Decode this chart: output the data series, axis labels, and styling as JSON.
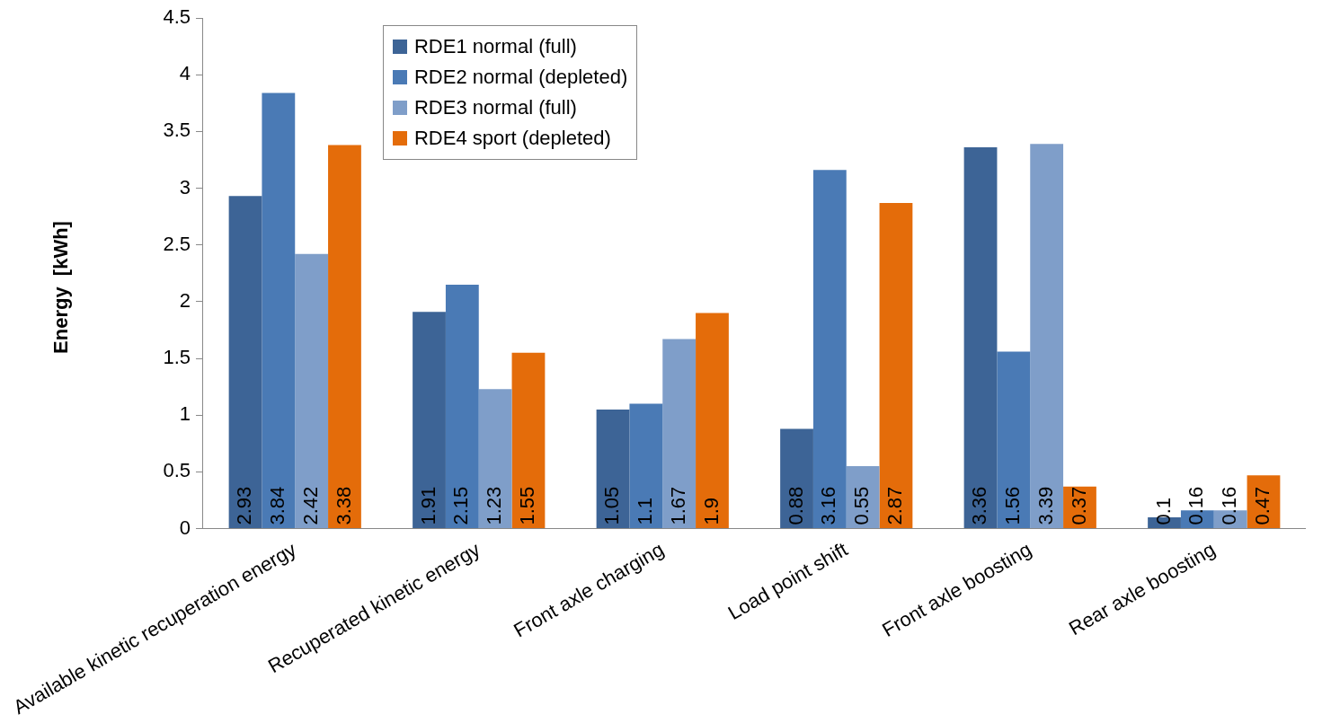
{
  "chart_data": {
    "type": "bar",
    "ylabel": "Energy  [kWh]",
    "categories": [
      "Available kinetic recuperation energy",
      "Recuperated kinetic energy",
      "Front axle charging",
      "Load point shift",
      "Front axle boosting",
      "Rear axle boosting"
    ],
    "series": [
      {
        "name": "RDE1 normal (full)",
        "color": "#3d6496",
        "values": [
          2.93,
          1.91,
          1.05,
          0.88,
          3.36,
          0.1
        ]
      },
      {
        "name": "RDE2 normal (depleted)",
        "color": "#4a7ab5",
        "values": [
          3.84,
          2.15,
          1.1,
          3.16,
          1.56,
          0.16
        ]
      },
      {
        "name": "RDE3 normal (full)",
        "color": "#7f9ec9",
        "values": [
          2.42,
          1.23,
          1.67,
          0.55,
          3.39,
          0.16
        ]
      },
      {
        "name": "RDE4 sport (depleted)",
        "color": "#e46c0a",
        "values": [
          3.38,
          1.55,
          1.9,
          2.87,
          0.37,
          0.47
        ]
      }
    ],
    "ylim": [
      0,
      4.5
    ],
    "yticks": [
      0,
      0.5,
      1,
      1.5,
      2,
      2.5,
      3,
      3.5,
      4,
      4.5
    ],
    "grid": false,
    "legend": "top",
    "data_labels": true
  }
}
